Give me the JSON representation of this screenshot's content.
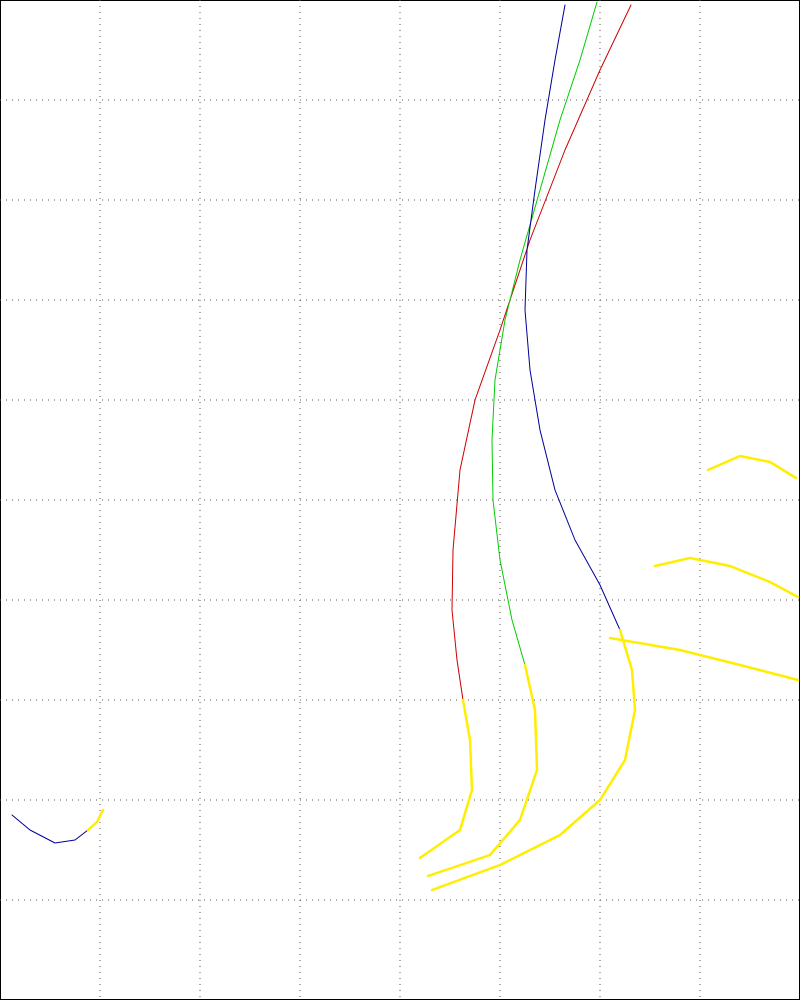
{
  "chart_data": {
    "type": "line",
    "xlim": [
      0,
      800
    ],
    "ylim": [
      1000,
      0
    ],
    "xticks": [
      100,
      200,
      300,
      400,
      500,
      600,
      700
    ],
    "yticks": [
      100,
      200,
      300,
      400,
      500,
      600,
      700,
      800,
      900
    ],
    "grid": true,
    "series": [
      {
        "color": "#cc0000",
        "x": [
          631,
          600,
          565,
          530,
          500,
          475,
          460,
          453,
          452,
          457,
          463
        ],
        "values": [
          5,
          70,
          150,
          240,
          330,
          400,
          470,
          550,
          610,
          660,
          700
        ]
      },
      {
        "color": "#ffee00",
        "x": [
          463,
          470,
          472,
          460,
          420
        ],
        "values": [
          700,
          740,
          790,
          830,
          858
        ]
      },
      {
        "color": "#00cc00",
        "x": [
          597,
          580,
          560,
          540,
          520,
          505,
          495,
          492,
          493,
          500,
          512,
          525
        ],
        "values": [
          2,
          60,
          120,
          190,
          260,
          320,
          380,
          440,
          500,
          560,
          620,
          665
        ]
      },
      {
        "color": "#ffee00",
        "x": [
          525,
          535,
          537,
          520,
          490,
          428
        ],
        "values": [
          665,
          710,
          770,
          820,
          855,
          876
        ]
      },
      {
        "color": "#000099",
        "x": [
          565,
          555,
          545,
          535,
          527,
          525,
          530,
          540,
          555,
          575,
          600,
          620
        ],
        "values": [
          5,
          60,
          120,
          190,
          250,
          310,
          370,
          430,
          490,
          540,
          585,
          630
        ]
      },
      {
        "color": "#ffee00",
        "x": [
          620,
          632,
          635,
          625,
          600,
          560,
          500,
          432
        ],
        "values": [
          630,
          670,
          710,
          760,
          800,
          835,
          865,
          890
        ]
      },
      {
        "color": "#ffee00",
        "x": [
          708,
          740,
          770,
          796
        ],
        "values": [
          470,
          456,
          462,
          478
        ]
      },
      {
        "color": "#ffee00",
        "x": [
          655,
          690,
          730,
          770,
          798
        ],
        "values": [
          566,
          558,
          566,
          582,
          597
        ]
      },
      {
        "color": "#ffee00",
        "x": [
          610,
          680,
          740,
          798
        ],
        "values": [
          638,
          650,
          665,
          680
        ]
      },
      {
        "color": "#000099",
        "x": [
          12,
          30,
          55,
          75,
          88
        ],
        "values": [
          815,
          830,
          843,
          840,
          830
        ]
      },
      {
        "color": "#ffee00",
        "x": [
          88,
          97,
          103
        ],
        "values": [
          830,
          822,
          810
        ]
      }
    ]
  }
}
